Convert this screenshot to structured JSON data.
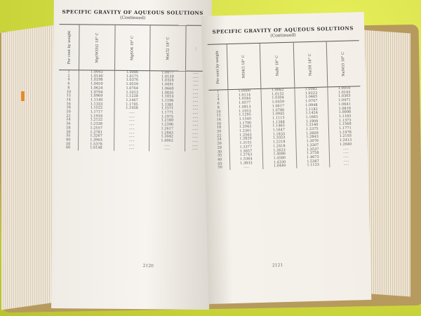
{
  "left_page": {
    "title": "SPECIFIC GRAVITY OF AQUEOUS SOLUTIONS",
    "subtitle": "(Continued)",
    "columns": [
      "Per cent by weight",
      "Mg(NO3)2 18° C",
      "MgSO4 18° C",
      "MnCl2 18° C",
      "…"
    ],
    "rows": [
      [
        "1",
        "1.0063",
        "1.0086",
        "1.0077"
      ],
      [
        "2",
        "1.0140",
        "1.0175",
        "1.0159"
      ],
      [
        "4",
        "1.0298",
        "1.0376",
        "1.0324"
      ],
      [
        "6",
        "1.0459",
        "1.0559",
        "1.0491"
      ],
      [
        "8",
        "1.0624",
        "1.0764",
        "1.0660"
      ],
      [
        "10",
        "1.0794",
        "1.1013",
        "1.0835"
      ],
      [
        "12",
        "1.0969",
        "1.1238",
        "1.1014"
      ],
      [
        "14",
        "1.1149",
        "1.1467",
        "1.1196"
      ],
      [
        "16",
        "1.1333",
        "1.1705",
        "1.1381"
      ],
      [
        "18",
        "1.1522",
        "1.1938",
        "1.1571"
      ],
      [
        "20",
        "1.1717",
        "",
        "1.1771"
      ],
      [
        "22",
        "1.1918",
        "",
        "1.1975"
      ],
      [
        "24",
        "1.2122",
        "",
        "1.2180"
      ],
      [
        "26",
        "1.2338",
        "",
        "1.2396"
      ],
      [
        "28",
        "1.2557",
        "",
        "1.2617"
      ],
      [
        "30",
        "1.2781",
        "",
        "1.2843"
      ],
      [
        "35",
        "1.3267",
        "",
        "1.3442"
      ],
      [
        "40",
        "1.3963",
        "",
        "1.4062"
      ],
      [
        "50",
        "1.5378",
        "",
        ""
      ],
      [
        "60",
        "1.6148",
        "",
        ""
      ]
    ],
    "page_number": "2120"
  },
  "right_page": {
    "title": "SPECIFIC GRAVITY OF AQUEOUS SOLUTIONS",
    "subtitle": "(Continued)",
    "columns": [
      "Per cent by weight",
      "NH4Cl 18° C",
      "NaBr 18° C",
      "NaOH 18° C",
      "NaNO3 18° C"
    ],
    "rows": [
      [
        "1",
        "1.0000",
        "1.0062",
        "1.0082",
        "1.0054"
      ],
      [
        "2",
        "1.0114",
        "1.0152",
        "1.0223",
        "1.0143"
      ],
      [
        "4",
        "1.0344",
        "1.0304",
        "1.0465",
        "1.0303"
      ],
      [
        "6",
        "1.0577",
        "1.0459",
        "1.0707",
        "1.0471"
      ],
      [
        "8",
        "1.0813",
        "1.0617",
        "1.0948",
        "1.0641"
      ],
      [
        "10",
        "1.1053",
        "1.0780",
        "1.1182",
        "1.0818"
      ],
      [
        "12",
        "1.1295",
        "1.0945",
        "1.1424",
        "1.0998"
      ],
      [
        "14",
        "1.1540",
        "1.1115",
        "1.1665",
        "1.1183"
      ],
      [
        "16",
        "1.1790",
        "1.1288",
        "1.1904",
        "1.1373"
      ],
      [
        "18",
        "1.2043",
        "1.1465",
        "1.2140",
        "1.1568"
      ],
      [
        "20",
        "1.2301",
        "1.1647",
        "1.2375",
        "1.1771"
      ],
      [
        "22",
        "1.2563",
        "1.1833",
        "1.2609",
        "1.1978"
      ],
      [
        "24",
        "1.2829",
        "1.2023",
        "1.2843",
        "1.2193"
      ],
      [
        "26",
        "1.3101",
        "1.2218",
        "1.3076",
        "1.2413"
      ],
      [
        "28",
        "1.3377",
        "1.2418",
        "1.3307",
        "1.2640"
      ],
      [
        "30",
        "1.3657",
        "1.2623",
        "1.3537",
        ""
      ],
      [
        "35",
        "1.2743",
        "1.4086",
        "1.3758",
        ""
      ],
      [
        "40",
        "1.5364",
        "1.4580",
        "1.4673",
        ""
      ],
      [
        "45",
        "1.3833",
        "1.4330",
        "1.5367",
        ""
      ],
      [
        "50",
        "",
        "1.0440",
        "1.1123",
        ""
      ]
    ],
    "page_number": "2121"
  },
  "colors": {
    "background": "#d9e24a",
    "page": "#f4f1ec",
    "cover": "#b79a5d",
    "tab": "#e88a2a"
  }
}
